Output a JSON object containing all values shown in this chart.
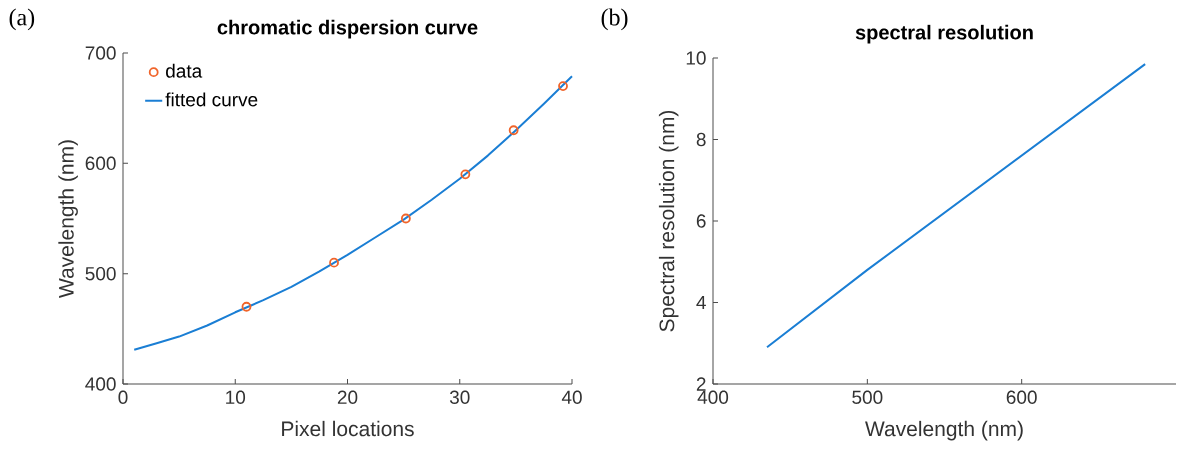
{
  "chart_data": [
    {
      "type": "line",
      "title": "chromatic dispersion curve",
      "xlabel": "Pixel locations",
      "ylabel": "Wavelength (nm)",
      "annotations": [
        "(a)"
      ],
      "xlim": [
        0,
        40
      ],
      "ylim": [
        400,
        700
      ],
      "xticks": [
        0,
        10,
        20,
        30,
        40
      ],
      "yticks": [
        400,
        500,
        600,
        700
      ],
      "legend": "top left",
      "series": [
        {
          "name": "data",
          "type": "scatter",
          "marker": "circle",
          "color": "#f0642a",
          "x": [
            11,
            18.8,
            25.2,
            30.5,
            34.8,
            39.2
          ],
          "values": [
            470,
            510,
            550,
            590,
            630,
            670
          ]
        },
        {
          "name": "fitted curve",
          "color": "#1a7ed4",
          "x": [
            1,
            3,
            5,
            7.5,
            10,
            12.5,
            15,
            17.5,
            20,
            22.5,
            25,
            27.5,
            30,
            32.5,
            35,
            37.5,
            40
          ],
          "values": [
            431,
            437,
            443,
            453,
            465,
            476,
            488,
            502,
            517,
            533,
            549,
            567,
            586,
            607,
            630,
            654,
            679
          ]
        }
      ]
    },
    {
      "type": "line",
      "title": "spectral resolution",
      "xlabel": "Wavelength (nm)",
      "ylabel": "Spectral resolution (nm)",
      "annotations": [
        "(b)"
      ],
      "xlim": [
        400,
        700
      ],
      "ylim": [
        2,
        10
      ],
      "xticks": [
        400,
        500,
        600
      ],
      "yticks": [
        2,
        4,
        6,
        8,
        10
      ],
      "series": [
        {
          "color": "#1a7ed4",
          "x": [
            435,
            500,
            680
          ],
          "values": [
            2.9,
            4.8,
            9.85
          ]
        }
      ]
    }
  ]
}
